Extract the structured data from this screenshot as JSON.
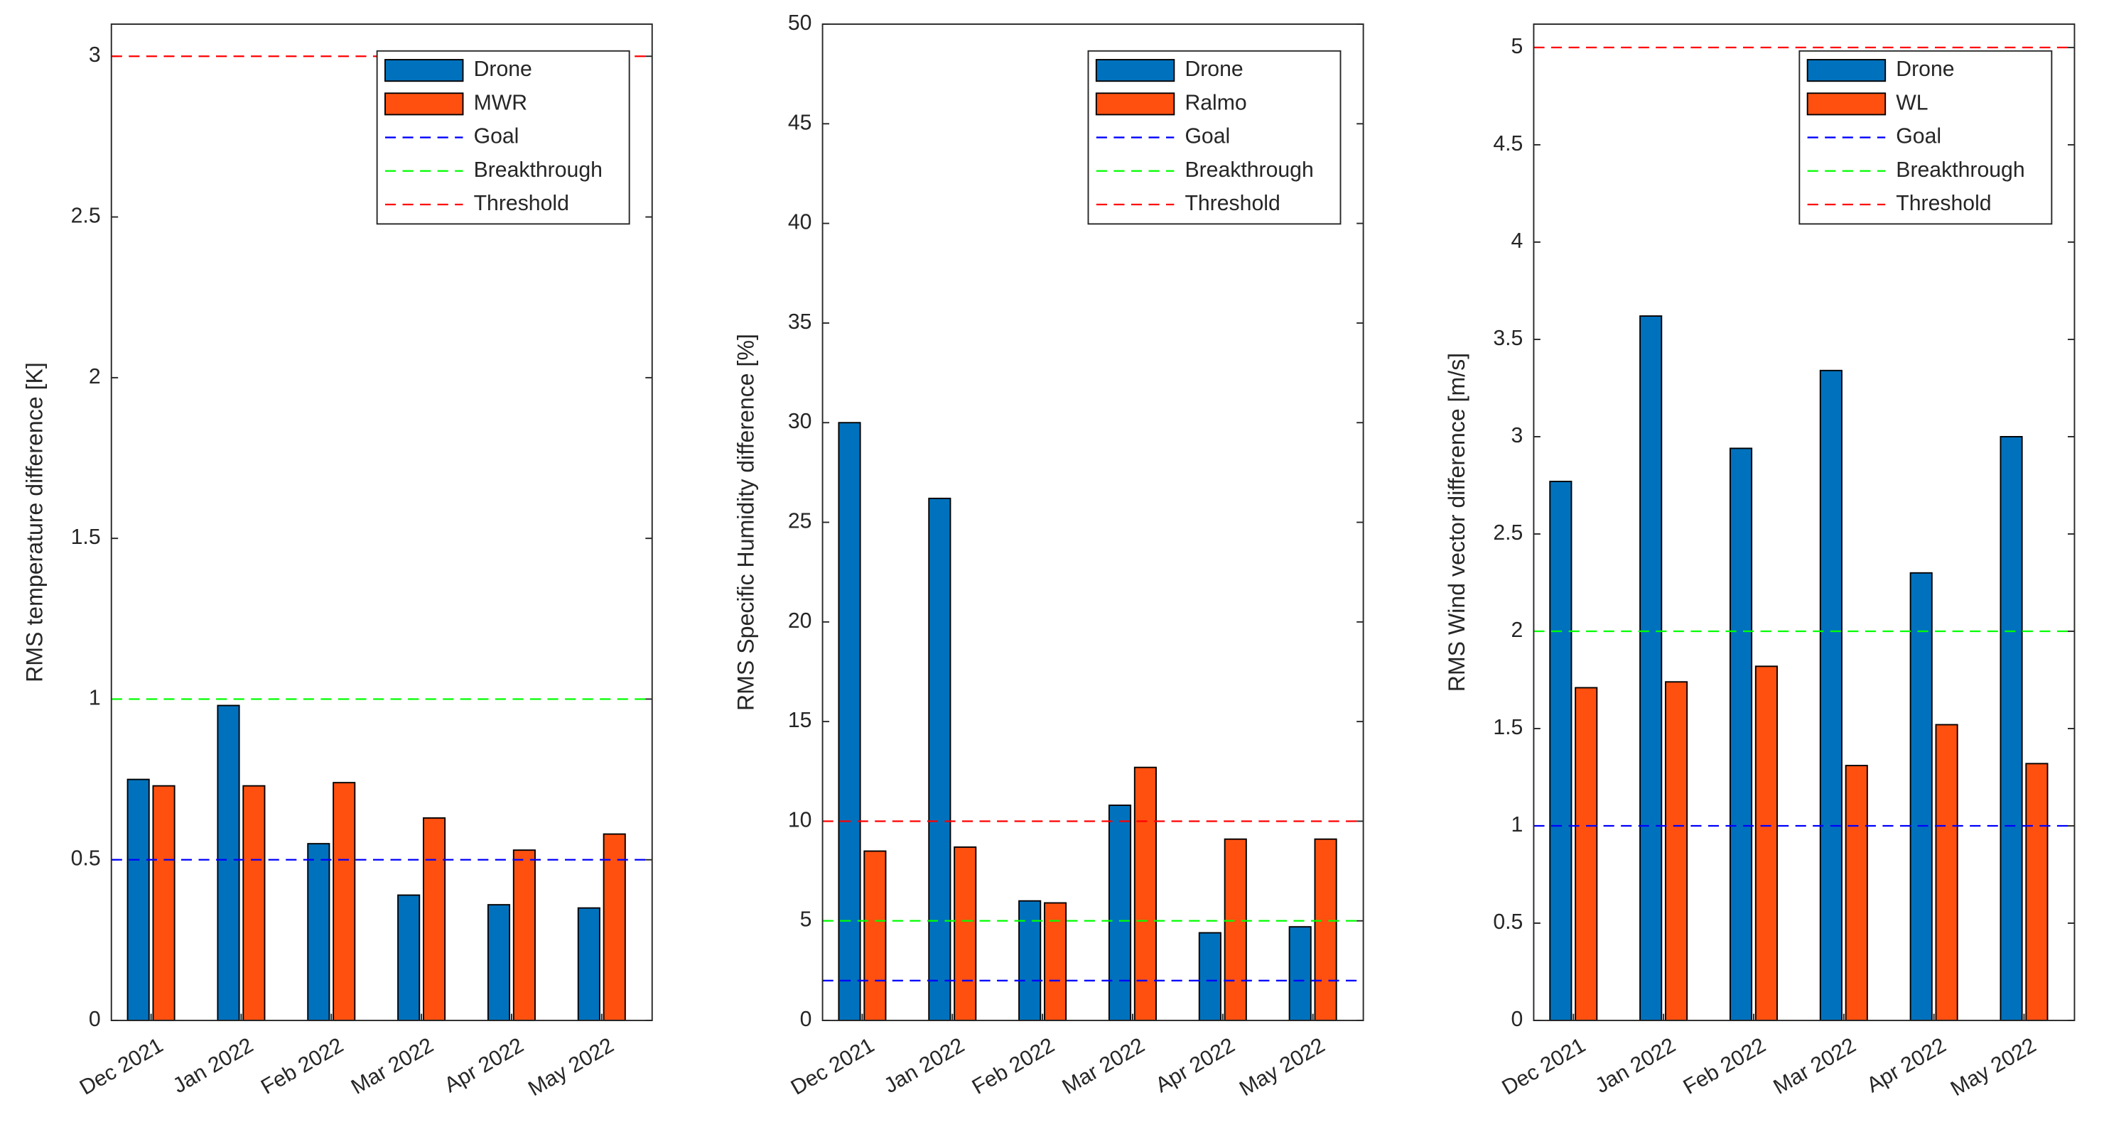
{
  "chart_data": [
    {
      "type": "bar",
      "ylabel": "RMS temperature difference [K]",
      "categories": [
        "Dec 2021",
        "Jan 2022",
        "Feb 2022",
        "Mar 2022",
        "Apr 2022",
        "May 2022"
      ],
      "series": [
        {
          "name": "Drone",
          "color": "#0072bd",
          "values": [
            0.75,
            0.98,
            0.55,
            0.39,
            0.36,
            0.35
          ]
        },
        {
          "name": "MWR",
          "color": "#ff5010",
          "values": [
            0.73,
            0.73,
            0.74,
            0.63,
            0.53,
            0.58
          ]
        }
      ],
      "lines": [
        {
          "name": "Goal",
          "color": "#0000ff",
          "value": 0.5
        },
        {
          "name": "Breakthrough",
          "color": "#00ff00",
          "value": 1
        },
        {
          "name": "Threshold",
          "color": "#ff0000",
          "value": 3
        }
      ],
      "ylim": [
        0,
        3.1
      ],
      "yticks": [
        0,
        0.5,
        1,
        1.5,
        2,
        2.5,
        3
      ],
      "legend": "top-right"
    },
    {
      "type": "bar",
      "ylabel": "RMS Specific Humidity difference [%]",
      "categories": [
        "Dec 2021",
        "Jan 2022",
        "Feb 2022",
        "Mar 2022",
        "Apr 2022",
        "May 2022"
      ],
      "series": [
        {
          "name": "Drone",
          "color": "#0072bd",
          "values": [
            30,
            26.2,
            6,
            10.8,
            4.4,
            4.7
          ]
        },
        {
          "name": "Ralmo",
          "color": "#ff5010",
          "values": [
            8.5,
            8.7,
            5.9,
            12.7,
            9.1,
            9.1
          ]
        }
      ],
      "lines": [
        {
          "name": "Goal",
          "color": "#0000ff",
          "value": 2
        },
        {
          "name": "Breakthrough",
          "color": "#00ff00",
          "value": 5
        },
        {
          "name": "Threshold",
          "color": "#ff0000",
          "value": 10
        }
      ],
      "ylim": [
        0,
        50
      ],
      "yticks": [
        0,
        5,
        10,
        15,
        20,
        25,
        30,
        35,
        40,
        45,
        50
      ],
      "legend": "top-right"
    },
    {
      "type": "bar",
      "ylabel": "RMS Wind vector difference [m/s]",
      "categories": [
        "Dec 2021",
        "Jan 2022",
        "Feb 2022",
        "Mar 2022",
        "Apr 2022",
        "May 2022"
      ],
      "series": [
        {
          "name": "Drone",
          "color": "#0072bd",
          "values": [
            2.77,
            3.62,
            2.94,
            3.34,
            2.3,
            3.0
          ]
        },
        {
          "name": "WL",
          "color": "#ff5010",
          "values": [
            1.71,
            1.74,
            1.82,
            1.31,
            1.52,
            1.32
          ]
        }
      ],
      "lines": [
        {
          "name": "Goal",
          "color": "#0000ff",
          "value": 1
        },
        {
          "name": "Breakthrough",
          "color": "#00ff00",
          "value": 2
        },
        {
          "name": "Threshold",
          "color": "#ff0000",
          "value": 5
        }
      ],
      "ylim": [
        0,
        5.12
      ],
      "yticks": [
        0,
        0.5,
        1,
        1.5,
        2,
        2.5,
        3,
        3.5,
        4,
        4.5,
        5
      ],
      "legend": "top-right"
    }
  ]
}
